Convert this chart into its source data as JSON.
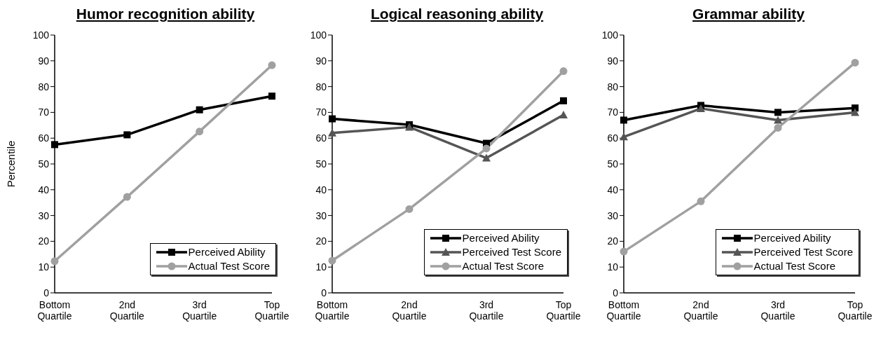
{
  "chart_data": [
    {
      "type": "line",
      "title": "Humor recognition ability",
      "ylabel": "Percentile",
      "categories": [
        "Bottom Quartile",
        "2nd Quartile",
        "3rd Quartile",
        "Top Quartile"
      ],
      "ylim": [
        0,
        100
      ],
      "yticks": [
        0,
        10,
        20,
        30,
        40,
        50,
        60,
        70,
        80,
        90,
        100
      ],
      "grid": false,
      "legend": "bottom right",
      "series": [
        {
          "name": "Perceived Ability",
          "color": "#000000",
          "marker": "square",
          "values": [
            57.5,
            61.3,
            71,
            76.3
          ]
        },
        {
          "name": "Actual Test Score",
          "color": "#a0a0a0",
          "marker": "circle",
          "values": [
            12.3,
            37.2,
            62.6,
            88.3
          ]
        }
      ]
    },
    {
      "type": "line",
      "title": "Logical reasoning ability",
      "categories": [
        "Bottom Quartile",
        "2nd Quartile",
        "3rd Quartile",
        "Top Quartile"
      ],
      "ylim": [
        0,
        100
      ],
      "yticks": [
        0,
        10,
        20,
        30,
        40,
        50,
        60,
        70,
        80,
        90,
        100
      ],
      "grid": false,
      "legend": "bottom right",
      "series": [
        {
          "name": "Perceived Ability",
          "color": "#000000",
          "marker": "square",
          "values": [
            67.5,
            65.2,
            58,
            74.5
          ]
        },
        {
          "name": "Perceived Test Score",
          "color": "#555555",
          "marker": "triangle",
          "values": [
            62,
            64.3,
            52.3,
            69
          ]
        },
        {
          "name": "Actual Test Score",
          "color": "#a0a0a0",
          "marker": "circle",
          "values": [
            12.5,
            32.5,
            56,
            86
          ]
        }
      ]
    },
    {
      "type": "line",
      "title": "Grammar ability",
      "categories": [
        "Bottom Quartile",
        "2nd Quartile",
        "3rd Quartile",
        "Top Quartile"
      ],
      "ylim": [
        0,
        100
      ],
      "yticks": [
        0,
        10,
        20,
        30,
        40,
        50,
        60,
        70,
        80,
        90,
        100
      ],
      "grid": false,
      "legend": "bottom right",
      "series": [
        {
          "name": "Perceived Ability",
          "color": "#000000",
          "marker": "square",
          "values": [
            67,
            72.7,
            70,
            71.7
          ]
        },
        {
          "name": "Perceived Test Score",
          "color": "#555555",
          "marker": "triangle",
          "values": [
            60.5,
            71.5,
            67,
            70
          ]
        },
        {
          "name": "Actual Test Score",
          "color": "#a0a0a0",
          "marker": "circle",
          "values": [
            16,
            35.5,
            64,
            89.3
          ]
        }
      ]
    }
  ]
}
